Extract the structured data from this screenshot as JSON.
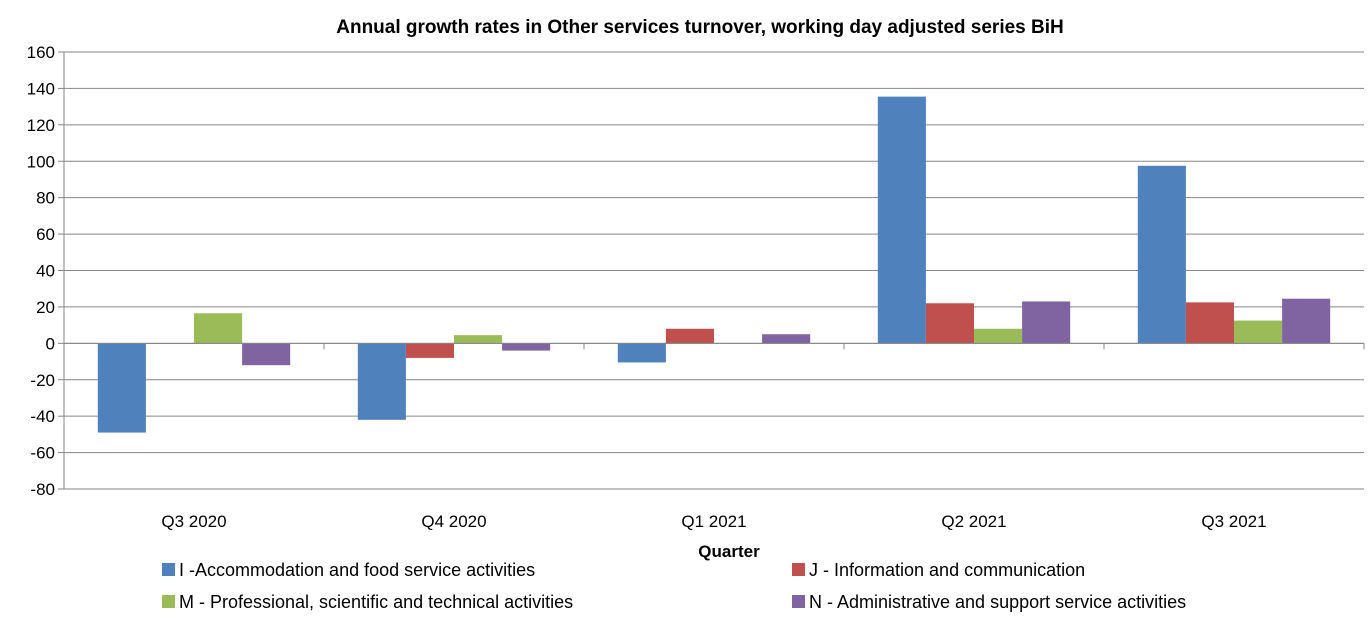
{
  "chart_data": {
    "type": "bar",
    "title": "Annual growth rates in Other services turnover, working day adjusted series BiH",
    "xlabel": "Quarter",
    "ylabel": "",
    "ylim": [
      -80,
      160
    ],
    "ytick_step": 20,
    "grid": true,
    "legend_position": "bottom",
    "categories": [
      "Q3 2020",
      "Q4 2020",
      "Q1 2021",
      "Q2 2021",
      "Q3 2021"
    ],
    "series": [
      {
        "name": "I -Accommodation and food service activities",
        "color": "#4F81BD",
        "values": [
          -49,
          -42,
          -10.5,
          135.5,
          97.5
        ]
      },
      {
        "name": "J - Information and communication",
        "color": "#C0504D",
        "values": [
          -0.3,
          -8,
          8,
          22,
          22.5
        ]
      },
      {
        "name": "M - Professional, scientific and technical activities",
        "color": "#9BBB59",
        "values": [
          16.5,
          4.5,
          0,
          8,
          12.5
        ]
      },
      {
        "name": "N - Administrative and support service activities",
        "color": "#8064A2",
        "values": [
          -12,
          -4,
          5,
          23,
          24.5
        ]
      }
    ]
  }
}
